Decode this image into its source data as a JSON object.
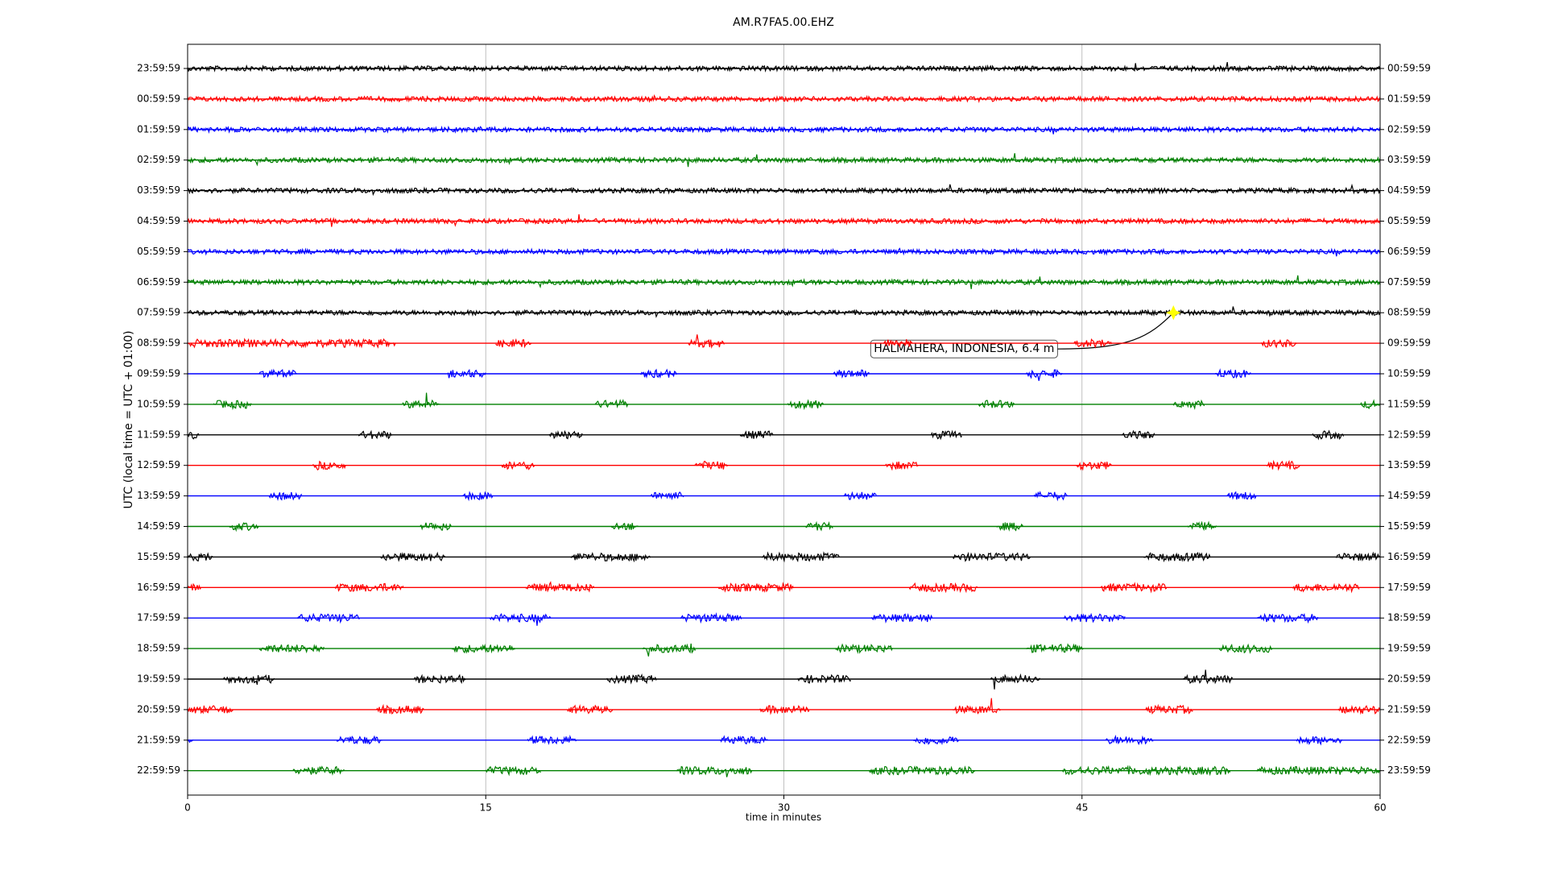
{
  "chart_data": {
    "type": "dayplot",
    "title": "AM.R7FA5.00.EHZ",
    "xlabel": "time in minutes",
    "ylabel": "UTC (local time = UTC + 01:00)",
    "xlim": [
      0,
      60
    ],
    "xticks": [
      0,
      15,
      30,
      45,
      60
    ],
    "grid": true,
    "rows": [
      {
        "label": "23:59:59",
        "right_label": "00:59:59",
        "color": "#000000",
        "bursts": [
          [
            0,
            60
          ]
        ]
      },
      {
        "label": "00:59:59",
        "right_label": "01:59:59",
        "color": "#ff0000",
        "bursts": [
          [
            0,
            60
          ]
        ]
      },
      {
        "label": "01:59:59",
        "right_label": "02:59:59",
        "color": "#0000ff",
        "bursts": [
          [
            0,
            60
          ]
        ]
      },
      {
        "label": "02:59:59",
        "right_label": "03:59:59",
        "color": "#008000",
        "bursts": [
          [
            0,
            60
          ]
        ]
      },
      {
        "label": "03:59:59",
        "right_label": "04:59:59",
        "color": "#000000",
        "bursts": [
          [
            0,
            60
          ]
        ]
      },
      {
        "label": "04:59:59",
        "right_label": "05:59:59",
        "color": "#ff0000",
        "bursts": [
          [
            0,
            60
          ]
        ]
      },
      {
        "label": "05:59:59",
        "right_label": "06:59:59",
        "color": "#0000ff",
        "bursts": [
          [
            0,
            60
          ]
        ]
      },
      {
        "label": "06:59:59",
        "right_label": "07:59:59",
        "color": "#008000",
        "bursts": [
          [
            0,
            60
          ]
        ]
      },
      {
        "label": "07:59:59",
        "right_label": "08:59:59",
        "color": "#000000",
        "bursts": [
          [
            0,
            60
          ]
        ],
        "event": {
          "x": 49.6,
          "label": "HALMAHERA, INDONESIA, 6.4 m"
        }
      },
      {
        "label": "08:59:59",
        "right_label": "09:59:59",
        "color": "#ff0000",
        "bursts": [
          [
            0,
            10.5
          ],
          [
            15.5,
            17.3
          ],
          [
            25.2,
            27
          ],
          [
            35,
            36.5
          ],
          [
            44.6,
            46.5
          ],
          [
            54,
            55.8
          ]
        ]
      },
      {
        "label": "09:59:59",
        "right_label": "10:59:59",
        "color": "#0000ff",
        "bursts": [
          [
            3.6,
            5.5
          ],
          [
            13.1,
            15
          ],
          [
            22.8,
            24.6
          ],
          [
            32.5,
            34.3
          ],
          [
            42.2,
            44
          ],
          [
            51.7,
            53.5
          ]
        ]
      },
      {
        "label": "10:59:59",
        "right_label": "11:59:59",
        "color": "#008000",
        "bursts": [
          [
            1.3,
            3.2
          ],
          [
            10.8,
            12.7
          ],
          [
            20.5,
            22.2
          ],
          [
            30.2,
            32
          ],
          [
            39.8,
            41.6
          ],
          [
            49.6,
            51.2
          ],
          [
            59,
            60
          ]
        ]
      },
      {
        "label": "11:59:59",
        "right_label": "12:59:59",
        "color": "#000000",
        "bursts": [
          [
            0,
            0.6
          ],
          [
            8.6,
            10.3
          ],
          [
            18.2,
            19.9
          ],
          [
            27.8,
            29.5
          ],
          [
            37.4,
            39
          ],
          [
            47,
            48.7
          ],
          [
            56.6,
            58.2
          ]
        ]
      },
      {
        "label": "12:59:59",
        "right_label": "13:59:59",
        "color": "#ff0000",
        "bursts": [
          [
            6.3,
            8
          ],
          [
            15.8,
            17.5
          ],
          [
            25.5,
            27.2
          ],
          [
            35.1,
            36.8
          ],
          [
            44.7,
            46.5
          ],
          [
            54.3,
            56
          ]
        ]
      },
      {
        "label": "13:59:59",
        "right_label": "14:59:59",
        "color": "#0000ff",
        "bursts": [
          [
            4.1,
            5.8
          ],
          [
            13.8,
            15.4
          ],
          [
            23.3,
            25
          ],
          [
            33,
            34.7
          ],
          [
            42.6,
            44.3
          ],
          [
            52.3,
            53.8
          ]
        ]
      },
      {
        "label": "14:59:59",
        "right_label": "15:59:59",
        "color": "#008000",
        "bursts": [
          [
            2.1,
            3.6
          ],
          [
            11.7,
            13.3
          ],
          [
            21.3,
            22.7
          ],
          [
            31.1,
            32.5
          ],
          [
            40.7,
            42.1
          ],
          [
            50.3,
            51.8
          ]
        ]
      },
      {
        "label": "15:59:59",
        "right_label": "16:59:59",
        "color": "#000000",
        "bursts": [
          [
            0,
            1.3
          ],
          [
            9.7,
            13
          ],
          [
            19.3,
            23.3
          ],
          [
            28.9,
            32.8
          ],
          [
            38.5,
            42.4
          ],
          [
            48.1,
            51.5
          ],
          [
            57.8,
            60
          ]
        ]
      },
      {
        "label": "16:59:59",
        "right_label": "17:59:59",
        "color": "#ff0000",
        "bursts": [
          [
            0,
            0.7
          ],
          [
            7.4,
            10.9
          ],
          [
            17,
            20.5
          ],
          [
            26.7,
            30.5
          ],
          [
            36.3,
            39.8
          ],
          [
            45.9,
            49.3
          ],
          [
            55.6,
            59
          ]
        ]
      },
      {
        "label": "17:59:59",
        "right_label": "18:59:59",
        "color": "#0000ff",
        "bursts": [
          [
            5.5,
            8.7
          ],
          [
            15.2,
            18.3
          ],
          [
            24.8,
            27.9
          ],
          [
            34.4,
            37.5
          ],
          [
            44.1,
            47.2
          ],
          [
            53.8,
            56.9
          ]
        ]
      },
      {
        "label": "18:59:59",
        "right_label": "19:59:59",
        "color": "#008000",
        "bursts": [
          [
            3.6,
            6.9
          ],
          [
            13.3,
            16.5
          ],
          [
            22.9,
            25.6
          ],
          [
            32.6,
            35.5
          ],
          [
            42.2,
            45.1
          ],
          [
            51.9,
            54.6
          ]
        ]
      },
      {
        "label": "19:59:59",
        "right_label": "20:59:59",
        "color": "#000000",
        "bursts": [
          [
            1.8,
            4.4
          ],
          [
            11.4,
            14
          ],
          [
            21.1,
            23.6
          ],
          [
            30.7,
            33.4
          ],
          [
            40.4,
            42.9
          ],
          [
            50.1,
            52.6
          ]
        ]
      },
      {
        "label": "20:59:59",
        "right_label": "21:59:59",
        "color": "#ff0000",
        "bursts": [
          [
            0,
            2.3
          ],
          [
            9.5,
            11.9
          ],
          [
            19.1,
            21.4
          ],
          [
            28.8,
            31.3
          ],
          [
            38.5,
            40.9
          ],
          [
            48.2,
            50.6
          ],
          [
            57.9,
            60
          ]
        ]
      },
      {
        "label": "21:59:59",
        "right_label": "22:59:59",
        "color": "#0000ff",
        "bursts": [
          [
            0,
            0.3
          ],
          [
            7.5,
            9.8
          ],
          [
            17.1,
            19.6
          ],
          [
            26.8,
            29.2
          ],
          [
            36.5,
            38.8
          ],
          [
            46.2,
            48.6
          ],
          [
            55.8,
            58.1
          ]
        ]
      },
      {
        "label": "22:59:59",
        "right_label": "23:59:59",
        "color": "#008000",
        "bursts": [
          [
            5.3,
            7.9
          ],
          [
            15,
            17.8
          ],
          [
            24.6,
            28.4
          ],
          [
            34.3,
            39.6
          ],
          [
            44,
            52.5
          ],
          [
            53.8,
            60
          ]
        ]
      }
    ]
  }
}
